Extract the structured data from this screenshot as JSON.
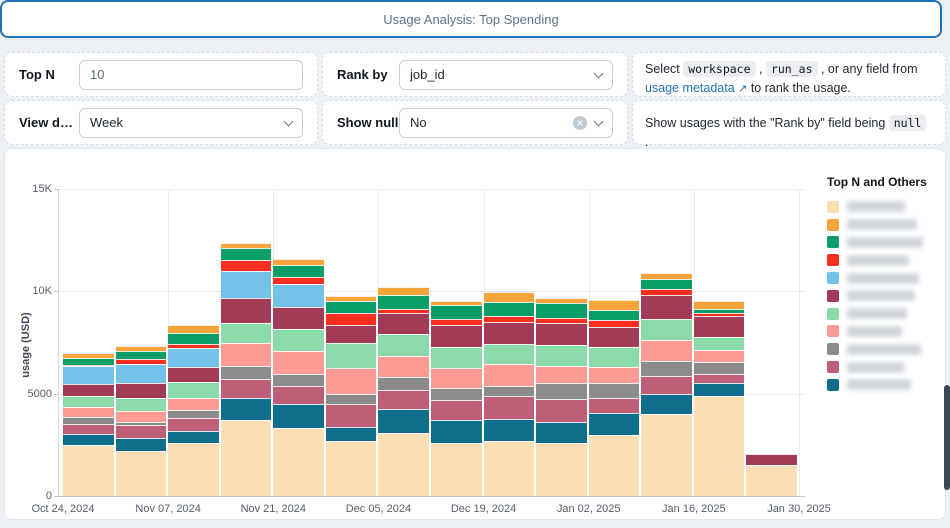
{
  "header": {
    "title": "Usage Analysis: Top Spending"
  },
  "controls": {
    "top_n": {
      "label": "Top N",
      "value": "10"
    },
    "rank_by": {
      "label": "Rank by",
      "value": "job_id"
    },
    "view_data": {
      "label": "View dat...",
      "value": "Week"
    },
    "show_null": {
      "label": "Show null",
      "value": "No"
    }
  },
  "help_rank": {
    "prefix": "Select ",
    "code1": "workspace",
    "sep1": " , ",
    "code2": "run_as",
    "mid": " , or any field from ",
    "link": "usage metadata",
    "ext_icon": "↗",
    "suffix": " to rank the usage."
  },
  "help_null": {
    "prefix": "Show usages with the \"Rank by\" field being ",
    "code": "null",
    "suffix": " ."
  },
  "chart_data": {
    "type": "bar",
    "subtype": "stacked-weekly",
    "title": "",
    "ylabel": "usage (USD)",
    "ylim": [
      0,
      15000
    ],
    "grid": true,
    "y_ticks": [
      {
        "value": 0,
        "label": "0"
      },
      {
        "value": 5000,
        "label": "5000"
      },
      {
        "value": 10000,
        "label": "10K"
      },
      {
        "value": 15000,
        "label": "15K"
      }
    ],
    "x_tick_labels": [
      "Oct 24, 2024",
      "Nov 07, 2024",
      "Nov 21, 2024",
      "Dec 05, 2024",
      "Dec 19, 2024",
      "Jan 02, 2025",
      "Jan 16, 2025",
      "Jan 30, 2025"
    ],
    "n_bars": 14,
    "series": [
      {
        "name": "series-cream",
        "color": "#fadfb5",
        "values": [
          2500,
          2200,
          2600,
          3700,
          3300,
          2700,
          3100,
          2600,
          2700,
          2600,
          3000,
          4000,
          4900,
          1500
        ]
      },
      {
        "name": "series-dark-teal",
        "color": "#0e6e8c",
        "values": [
          520,
          650,
          570,
          1100,
          1180,
          660,
          1150,
          1100,
          1050,
          1030,
          1070,
          980,
          610,
          0
        ]
      },
      {
        "name": "series-mauve",
        "color": "#be5f77",
        "values": [
          520,
          620,
          620,
          900,
          900,
          1150,
          930,
          980,
          1150,
          1100,
          740,
          900,
          460,
          0
        ]
      },
      {
        "name": "series-gray",
        "color": "#8b8b8b",
        "values": [
          300,
          160,
          410,
          660,
          570,
          490,
          620,
          620,
          460,
          790,
          690,
          740,
          570,
          0
        ]
      },
      {
        "name": "series-pink",
        "color": "#fc9a94",
        "values": [
          490,
          520,
          610,
          1100,
          1150,
          1230,
          1020,
          930,
          1100,
          820,
          820,
          980,
          610,
          0
        ]
      },
      {
        "name": "series-light-green",
        "color": "#8bdaa9",
        "values": [
          570,
          650,
          740,
          980,
          1070,
          1230,
          1100,
          1070,
          950,
          1020,
          950,
          1070,
          620,
          0
        ]
      },
      {
        "name": "series-maroon",
        "color": "#a23b55",
        "values": [
          570,
          740,
          770,
          1230,
          1070,
          900,
          1020,
          1070,
          1070,
          1080,
          980,
          1150,
          1020,
          560
        ]
      },
      {
        "name": "series-light-blue",
        "color": "#73c3e8",
        "values": [
          870,
          900,
          920,
          1300,
          1100,
          0,
          0,
          0,
          0,
          0,
          0,
          0,
          0,
          0
        ]
      },
      {
        "name": "series-red",
        "color": "#fb2e1f",
        "values": [
          60,
          250,
          200,
          570,
          360,
          570,
          210,
          280,
          330,
          280,
          330,
          280,
          160,
          0
        ]
      },
      {
        "name": "series-green",
        "color": "#0a9e67",
        "values": [
          330,
          380,
          520,
          570,
          570,
          620,
          660,
          660,
          660,
          700,
          520,
          490,
          210,
          0
        ]
      },
      {
        "name": "series-orange",
        "color": "#f8a43b",
        "values": [
          250,
          280,
          410,
          250,
          330,
          230,
          380,
          210,
          490,
          230,
          490,
          300,
          360,
          0
        ]
      }
    ],
    "legend": {
      "title": "Top N and Others",
      "position": "right",
      "labels_blurred": true,
      "items": [
        {
          "color": "#fadfb5",
          "blur_width": 58
        },
        {
          "color": "#f8a43b",
          "blur_width": 70
        },
        {
          "color": "#0a9e67",
          "blur_width": 76
        },
        {
          "color": "#fb2e1f",
          "blur_width": 62
        },
        {
          "color": "#73c3e8",
          "blur_width": 72
        },
        {
          "color": "#a23b55",
          "blur_width": 68
        },
        {
          "color": "#8bdaa9",
          "blur_width": 60
        },
        {
          "color": "#fc9a94",
          "blur_width": 55
        },
        {
          "color": "#8b8b8b",
          "blur_width": 74
        },
        {
          "color": "#be5f77",
          "blur_width": 57
        },
        {
          "color": "#0e6e8c",
          "blur_width": 64
        }
      ]
    }
  }
}
